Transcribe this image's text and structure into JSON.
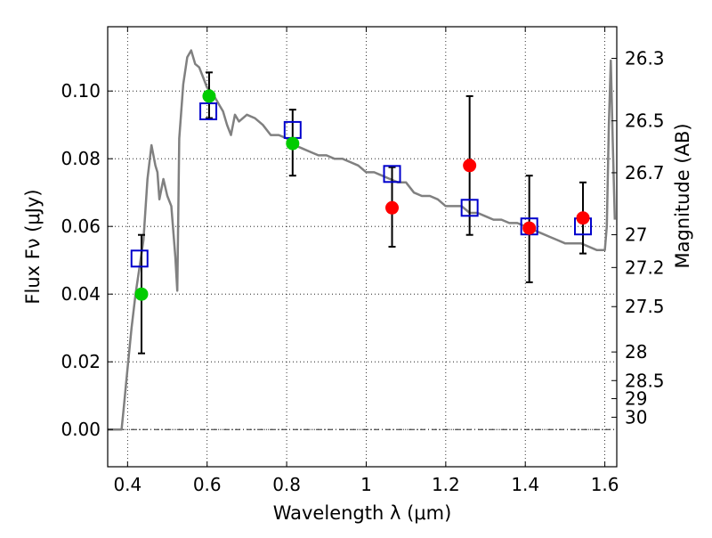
{
  "chart_data": {
    "type": "scatter",
    "xlabel": "Wavelength  λ (μm)",
    "ylabel": "Flux  Fν (μJy)",
    "y2label": "Magnitude (AB)",
    "xlim": [
      0.35,
      1.63
    ],
    "ylim": [
      -0.011,
      0.119
    ],
    "grid": true,
    "x_ticks": [
      {
        "v": 0.4,
        "label": "0.4"
      },
      {
        "v": 0.6,
        "label": "0.6"
      },
      {
        "v": 0.8,
        "label": "0.8"
      },
      {
        "v": 1.0,
        "label": "1"
      },
      {
        "v": 1.2,
        "label": "1.2"
      },
      {
        "v": 1.4,
        "label": "1.4"
      },
      {
        "v": 1.6,
        "label": "1.6"
      }
    ],
    "y_ticks": [
      {
        "v": 0.0,
        "label": "0.00"
      },
      {
        "v": 0.02,
        "label": "0.02"
      },
      {
        "v": 0.04,
        "label": "0.04"
      },
      {
        "v": 0.06,
        "label": "0.06"
      },
      {
        "v": 0.08,
        "label": "0.08"
      },
      {
        "v": 0.1,
        "label": "0.10"
      }
    ],
    "mag_ticks": [
      {
        "mag": 26.3,
        "label": "26.3"
      },
      {
        "mag": 26.5,
        "label": "26.5"
      },
      {
        "mag": 26.7,
        "label": "26.7"
      },
      {
        "mag": 27.0,
        "label": "27"
      },
      {
        "mag": 27.2,
        "label": "27.2"
      },
      {
        "mag": 27.5,
        "label": "27.5"
      },
      {
        "mag": 28.0,
        "label": "28"
      },
      {
        "mag": 28.5,
        "label": "28.5"
      },
      {
        "mag": 29.0,
        "label": "29"
      },
      {
        "mag": 30.0,
        "label": "30"
      }
    ],
    "colors": {
      "model": "#808080",
      "optical": "#00cc00",
      "nir": "#ff0000",
      "model_band": "#0000cc",
      "errorbar": "#000000"
    },
    "series": [
      {
        "kind": "line",
        "x": [
          0.35,
          0.385,
          0.39,
          0.4,
          0.41,
          0.42,
          0.43,
          0.44,
          0.45,
          0.46,
          0.47,
          0.475,
          0.48,
          0.49,
          0.5,
          0.51,
          0.52,
          0.525,
          0.53,
          0.54,
          0.55,
          0.56,
          0.57,
          0.58,
          0.59,
          0.6,
          0.61,
          0.62,
          0.63,
          0.64,
          0.65,
          0.66,
          0.67,
          0.68,
          0.7,
          0.72,
          0.74,
          0.76,
          0.78,
          0.8,
          0.82,
          0.84,
          0.86,
          0.88,
          0.9,
          0.92,
          0.94,
          0.96,
          0.98,
          1.0,
          1.02,
          1.04,
          1.06,
          1.08,
          1.1,
          1.12,
          1.14,
          1.16,
          1.18,
          1.2,
          1.22,
          1.24,
          1.26,
          1.28,
          1.3,
          1.32,
          1.34,
          1.36,
          1.38,
          1.4,
          1.42,
          1.44,
          1.46,
          1.48,
          1.5,
          1.52,
          1.54,
          1.56,
          1.58,
          1.6,
          1.605,
          1.61,
          1.615,
          1.62,
          1.625
        ],
        "y": [
          0.0,
          0.0,
          0.006,
          0.018,
          0.03,
          0.04,
          0.048,
          0.056,
          0.074,
          0.084,
          0.078,
          0.076,
          0.068,
          0.074,
          0.069,
          0.066,
          0.051,
          0.041,
          0.086,
          0.102,
          0.11,
          0.112,
          0.108,
          0.107,
          0.104,
          0.101,
          0.1,
          0.098,
          0.096,
          0.094,
          0.09,
          0.087,
          0.093,
          0.091,
          0.093,
          0.092,
          0.09,
          0.087,
          0.087,
          0.086,
          0.084,
          0.083,
          0.082,
          0.081,
          0.081,
          0.08,
          0.08,
          0.079,
          0.078,
          0.076,
          0.076,
          0.075,
          0.074,
          0.073,
          0.073,
          0.07,
          0.069,
          0.069,
          0.068,
          0.066,
          0.066,
          0.066,
          0.064,
          0.064,
          0.063,
          0.062,
          0.062,
          0.061,
          0.061,
          0.06,
          0.059,
          0.058,
          0.057,
          0.056,
          0.055,
          0.055,
          0.055,
          0.054,
          0.053,
          0.053,
          0.06,
          0.09,
          0.109,
          0.085,
          0.062
        ]
      },
      {
        "kind": "points",
        "marker": "circle-optical",
        "x": [
          0.435,
          0.605,
          0.815
        ],
        "y": [
          0.04,
          0.0985,
          0.0845
        ],
        "yerr_low": [
          0.0225,
          0.092,
          0.075
        ],
        "yerr_high": [
          0.0575,
          0.1055,
          0.0945
        ]
      },
      {
        "kind": "points",
        "marker": "circle-nir",
        "x": [
          1.065,
          1.26,
          1.41,
          1.545
        ],
        "y": [
          0.0655,
          0.078,
          0.0595,
          0.0625
        ],
        "yerr_low": [
          0.054,
          0.0575,
          0.0435,
          0.052
        ],
        "yerr_high": [
          0.0775,
          0.0985,
          0.075,
          0.073
        ]
      },
      {
        "kind": "points",
        "marker": "square-open",
        "x": [
          0.43,
          0.603,
          0.815,
          1.065,
          1.26,
          1.41,
          1.545
        ],
        "y": [
          0.0505,
          0.094,
          0.0885,
          0.0755,
          0.0655,
          0.06,
          0.06
        ]
      }
    ]
  }
}
